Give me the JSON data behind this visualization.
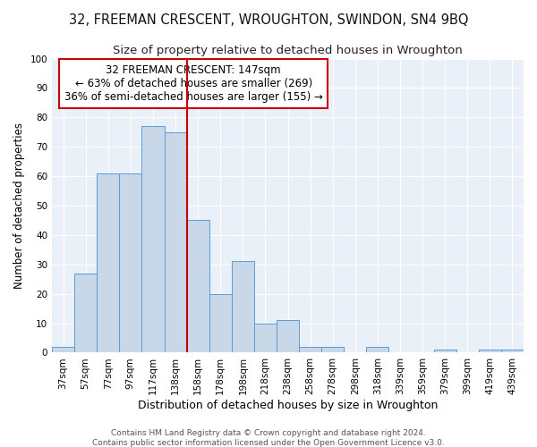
{
  "title": "32, FREEMAN CRESCENT, WROUGHTON, SWINDON, SN4 9BQ",
  "subtitle": "Size of property relative to detached houses in Wroughton",
  "xlabel": "Distribution of detached houses by size in Wroughton",
  "ylabel": "Number of detached properties",
  "bar_labels": [
    "37sqm",
    "57sqm",
    "77sqm",
    "97sqm",
    "117sqm",
    "138sqm",
    "158sqm",
    "178sqm",
    "198sqm",
    "218sqm",
    "238sqm",
    "258sqm",
    "278sqm",
    "298sqm",
    "318sqm",
    "339sqm",
    "359sqm",
    "379sqm",
    "399sqm",
    "419sqm",
    "439sqm"
  ],
  "bar_values": [
    2,
    27,
    61,
    61,
    77,
    75,
    45,
    20,
    31,
    10,
    11,
    2,
    2,
    0,
    2,
    0,
    0,
    1,
    0,
    1,
    1
  ],
  "bar_color": "#c8d8e8",
  "bar_edge_color": "#5b9bd5",
  "marker_line_index": 5,
  "annotation_title": "32 FREEMAN CRESCENT: 147sqm",
  "annotation_line1": "← 63% of detached houses are smaller (269)",
  "annotation_line2": "36% of semi-detached houses are larger (155) →",
  "marker_color": "#cc0000",
  "ylim": [
    0,
    100
  ],
  "yticks": [
    0,
    10,
    20,
    30,
    40,
    50,
    60,
    70,
    80,
    90,
    100
  ],
  "background_color": "#eaf0f8",
  "grid_color": "white",
  "footer1": "Contains HM Land Registry data © Crown copyright and database right 2024.",
  "footer2": "Contains public sector information licensed under the Open Government Licence v3.0.",
  "title_fontsize": 10.5,
  "subtitle_fontsize": 9.5,
  "xlabel_fontsize": 9,
  "ylabel_fontsize": 8.5,
  "tick_fontsize": 7.5,
  "annotation_fontsize": 8.5,
  "footer_fontsize": 6.5
}
